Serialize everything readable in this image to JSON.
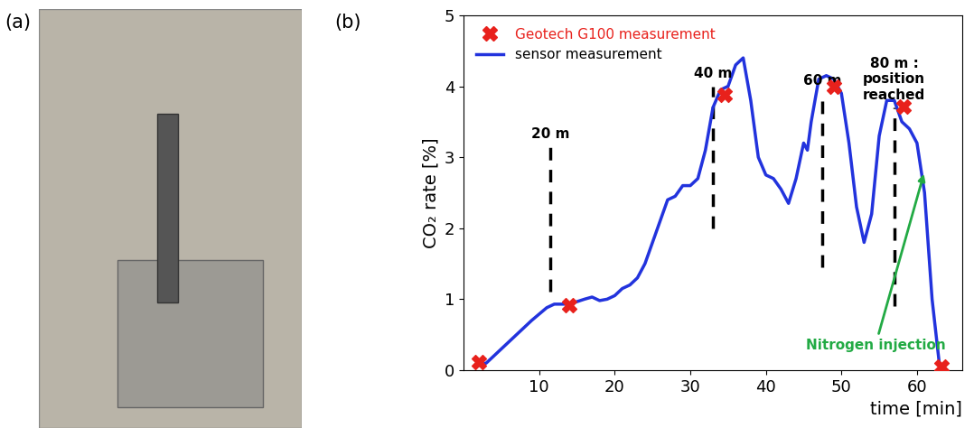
{
  "panel_labels": [
    "(a)",
    "(b)"
  ],
  "chart_data": {
    "type": "line",
    "x_label": "time [min]",
    "y_label": "CO₂ rate [%]",
    "xlim": [
      0,
      66
    ],
    "xticks": [
      10,
      20,
      30,
      40,
      50,
      60
    ],
    "ylim": [
      0,
      5
    ],
    "yticks": [
      0,
      1,
      2,
      3,
      4,
      5
    ],
    "legend": "upper left",
    "series": [
      {
        "name": "Geotech G100 measurement",
        "type": "scatter",
        "color": "#e8211c",
        "marker": "X",
        "x": [
          2,
          14,
          34.5,
          49,
          58.2,
          63.3
        ],
        "values": [
          0.12,
          0.92,
          3.88,
          4.0,
          3.72,
          0.05
        ]
      },
      {
        "name": "sensor measurement",
        "type": "line",
        "color": "#2233dd",
        "line_style": "solid",
        "x": [
          1.5,
          3,
          5,
          7,
          9,
          11,
          12,
          14,
          16,
          17,
          18,
          19,
          20,
          21,
          22,
          23,
          24,
          25,
          26,
          27,
          28,
          29,
          30,
          31,
          32,
          33,
          34,
          35,
          36,
          37,
          38,
          39,
          40,
          41,
          42,
          43,
          44,
          45,
          45.5,
          46,
          47,
          48,
          49,
          50,
          51,
          52,
          53,
          54,
          55,
          56,
          57,
          58,
          59,
          60,
          61,
          62,
          63
        ],
        "values": [
          0.05,
          0.1,
          0.3,
          0.5,
          0.7,
          0.88,
          0.93,
          0.93,
          1.0,
          1.03,
          0.98,
          1.0,
          1.05,
          1.15,
          1.2,
          1.3,
          1.5,
          1.8,
          2.1,
          2.4,
          2.45,
          2.6,
          2.6,
          2.7,
          3.1,
          3.7,
          3.95,
          4.0,
          4.3,
          4.4,
          3.8,
          3.0,
          2.75,
          2.7,
          2.55,
          2.35,
          2.7,
          3.2,
          3.1,
          3.5,
          4.1,
          4.15,
          4.1,
          3.9,
          3.2,
          2.3,
          1.8,
          2.2,
          3.3,
          3.8,
          3.8,
          3.5,
          3.4,
          3.2,
          2.5,
          1.0,
          0.05
        ]
      }
    ],
    "markers": [
      {
        "text": "20 m",
        "x": 11.5,
        "y_range": [
          1.1,
          3.15
        ]
      },
      {
        "text": "40 m",
        "x": 33,
        "y_range": [
          2.0,
          4.0
        ]
      },
      {
        "text": "60 m",
        "x": 47.5,
        "y_range": [
          1.45,
          3.9
        ]
      },
      {
        "text": "80 m :\nposition\nreached",
        "x": 57,
        "y_range": [
          0.9,
          3.7
        ]
      }
    ],
    "arrow": {
      "text": "Nitrogen injection",
      "color": "#22aa44",
      "x": 54.5,
      "y": 0.35,
      "arrow_to": [
        61,
        2.8
      ]
    }
  }
}
